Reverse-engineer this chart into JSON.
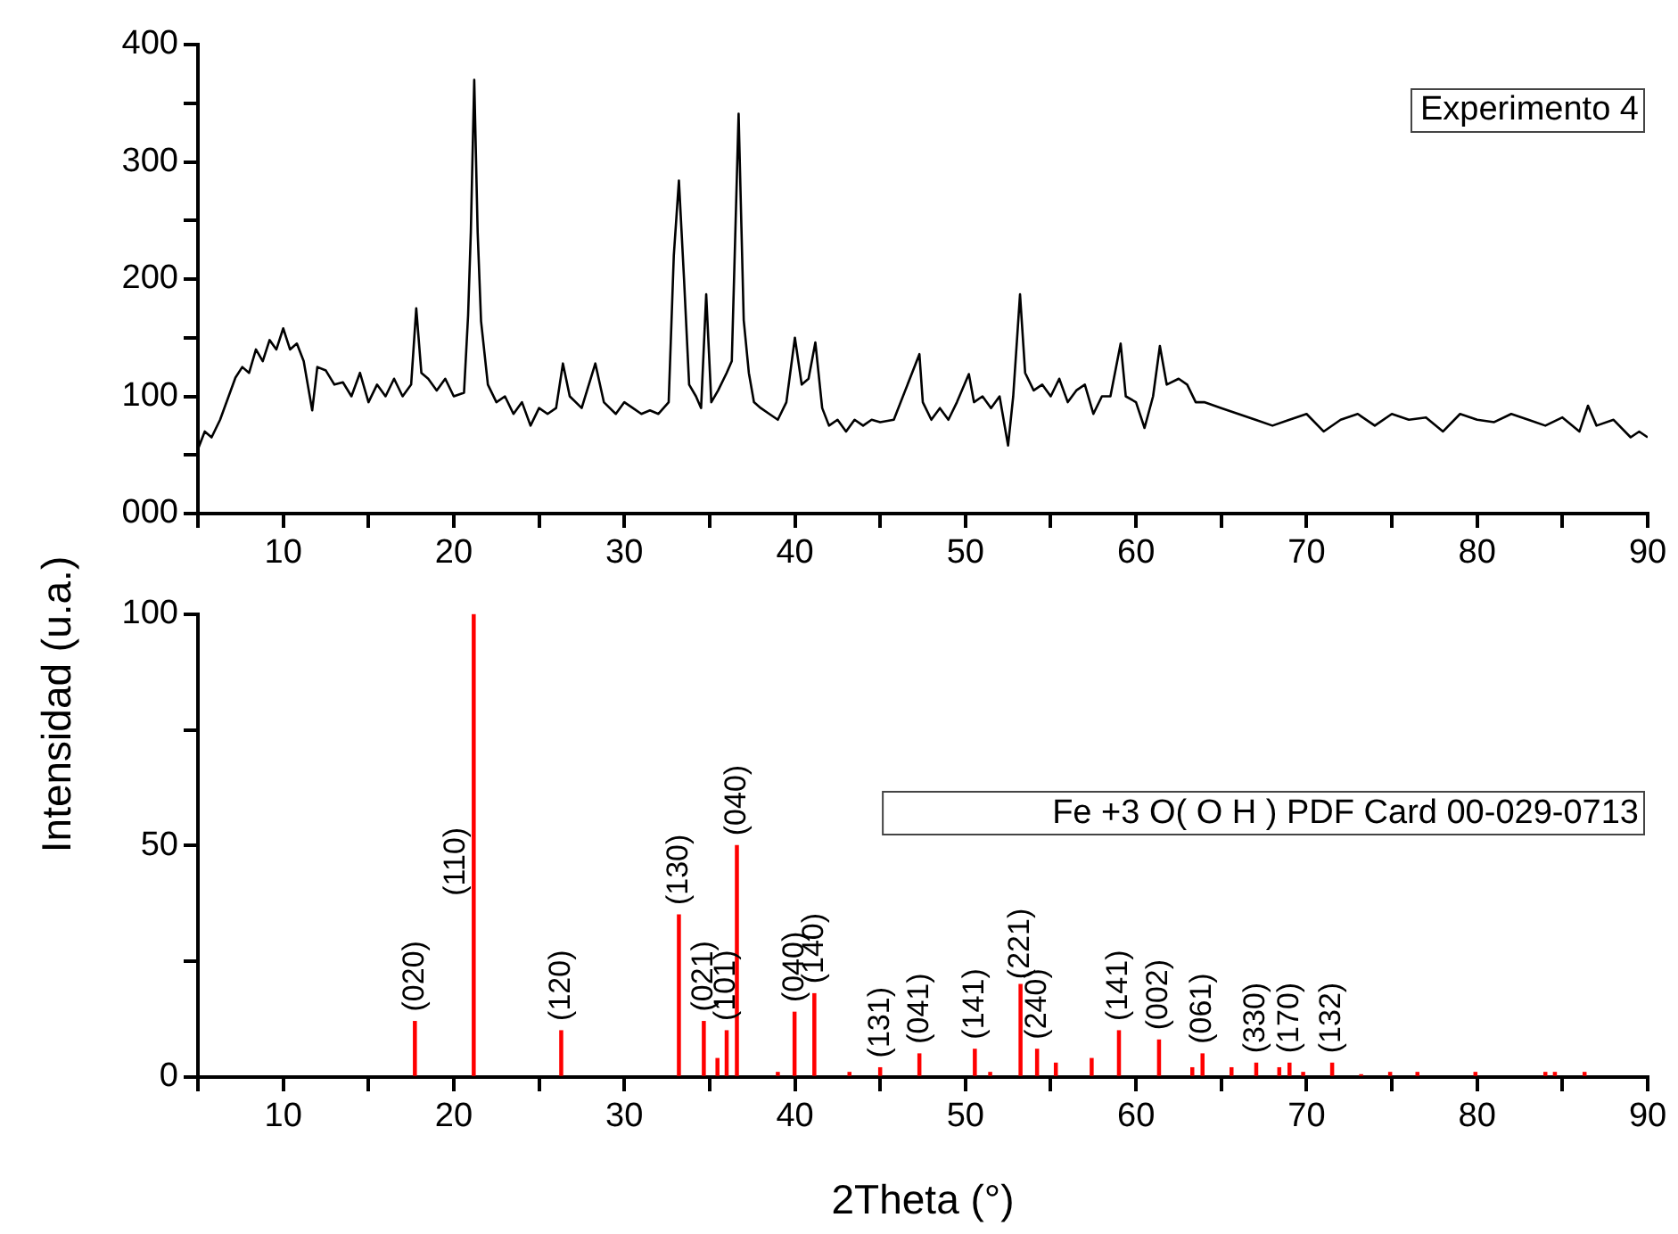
{
  "chart_data": [
    {
      "type": "line",
      "x": [
        5,
        5.4,
        5.8,
        6.3,
        6.8,
        7.2,
        7.6,
        8,
        8.4,
        8.8,
        9.2,
        9.6,
        10,
        10.4,
        10.8,
        11.2,
        11.7,
        12,
        12.5,
        13,
        13.5,
        14,
        14.5,
        15,
        15.5,
        16,
        16.5,
        17,
        17.5,
        17.8,
        18.1,
        18.5,
        19,
        19.5,
        20,
        20.6,
        20.84,
        21,
        21.2,
        21.4,
        21.6,
        22,
        22.5,
        23,
        23.5,
        24,
        24.5,
        25,
        25.5,
        26,
        26.4,
        26.8,
        27.5,
        28.3,
        28.8,
        29.5,
        30,
        30.5,
        31,
        31.5,
        32,
        32.6,
        32.9,
        33.2,
        33.5,
        33.8,
        34.2,
        34.5,
        34.8,
        35.1,
        35.5,
        36,
        36.3,
        36.7,
        37,
        37.3,
        37.6,
        38,
        38.5,
        39,
        39.5,
        40,
        40.4,
        40.8,
        41.2,
        41.6,
        42,
        42.5,
        43,
        43.5,
        44,
        44.5,
        45,
        45.8,
        47.3,
        47.5,
        48,
        48.5,
        49,
        49.5,
        50.2,
        50.5,
        51,
        51.5,
        52,
        52.5,
        52.8,
        53.2,
        53.5,
        54,
        54.5,
        55,
        55.5,
        56,
        56.5,
        57,
        57.5,
        58,
        58.5,
        59.1,
        59.4,
        60,
        60.5,
        61,
        61.4,
        61.8,
        62.5,
        63,
        63.5,
        64,
        65,
        66,
        67,
        68,
        69,
        70,
        71,
        72,
        73,
        74,
        75,
        76,
        77,
        78,
        79,
        80,
        81,
        82,
        83,
        84,
        85,
        86,
        86.5,
        87,
        88,
        89,
        89.5,
        90
      ],
      "series": [
        {
          "name": "Experimento 4",
          "color": "#000000",
          "values": [
            55,
            70,
            65,
            80,
            100,
            116,
            125,
            120,
            140,
            130,
            148,
            140,
            158,
            140,
            145,
            130,
            88,
            125,
            122,
            110,
            112,
            100,
            120,
            95,
            110,
            100,
            115,
            100,
            110,
            175,
            120,
            115,
            105,
            115,
            100,
            103,
            169,
            240,
            370,
            240,
            164,
            110,
            95,
            100,
            85,
            95,
            75,
            90,
            85,
            90,
            128,
            100,
            90,
            128,
            95,
            85,
            95,
            90,
            85,
            88,
            85,
            95,
            220,
            284,
            200,
            110,
            100,
            90,
            187,
            95,
            105,
            120,
            130,
            341,
            165,
            120,
            95,
            90,
            85,
            80,
            95,
            150,
            110,
            115,
            146,
            90,
            75,
            80,
            70,
            80,
            75,
            80,
            78,
            80,
            136,
            95,
            80,
            90,
            80,
            95,
            119,
            95,
            100,
            90,
            100,
            58,
            100,
            187,
            120,
            105,
            110,
            100,
            115,
            95,
            105,
            110,
            85,
            100,
            100,
            145,
            100,
            95,
            73,
            100,
            143,
            110,
            115,
            110,
            95,
            95,
            90,
            85,
            80,
            75,
            80,
            85,
            70,
            80,
            85,
            75,
            85,
            80,
            82,
            70,
            85,
            80,
            78,
            85,
            80,
            75,
            82,
            70,
            92,
            75,
            80,
            65,
            70,
            65
          ]
        }
      ],
      "xlim": [
        5,
        90
      ],
      "xticks": [
        {
          "value": 5,
          "label": null
        },
        10,
        {
          "value": 15,
          "label": null
        },
        20,
        {
          "value": 25,
          "label": null
        },
        30,
        {
          "value": 35,
          "label": null
        },
        40,
        {
          "value": 45,
          "label": null
        },
        50,
        {
          "value": 55,
          "label": null
        },
        60,
        {
          "value": 65,
          "label": null
        },
        70,
        {
          "value": 75,
          "label": null
        },
        80,
        {
          "value": 85,
          "label": null
        },
        90
      ],
      "ylim": [
        0,
        400
      ],
      "yticks": [
        {
          "value": 0,
          "label": "000"
        },
        {
          "value": 50,
          "label": null
        },
        100,
        {
          "value": 150,
          "label": null
        },
        200,
        {
          "value": 250,
          "label": null
        },
        300,
        {
          "value": 350,
          "label": null
        },
        400
      ],
      "marker": "none",
      "legend": "top right"
    },
    {
      "type": "bar",
      "x": [
        17.72,
        21.17,
        26.3,
        33.2,
        34.66,
        35.46,
        36,
        36.6,
        39,
        39.98,
        41.14,
        43.2,
        45,
        47.3,
        50.55,
        51.45,
        53.23,
        54.2,
        55.3,
        57.4,
        59,
        61.35,
        63.3,
        63.9,
        65.6,
        67.05,
        68.4,
        69,
        69.8,
        71.5,
        73.2,
        74.9,
        76.5,
        79.9,
        84,
        84.56,
        86.3
      ],
      "series": [
        {
          "name": "Fe +3 O( O H ) PDF Card 00-029-0713",
          "color": "#ff0000",
          "values": [
            12,
            100,
            10,
            35,
            12,
            4,
            10,
            50,
            1,
            14,
            18,
            1,
            2,
            5,
            6,
            1,
            20,
            6,
            3,
            4,
            10,
            8,
            2,
            5,
            2,
            3,
            2,
            3,
            1,
            3,
            0.5,
            1,
            1,
            1,
            1,
            1,
            1
          ]
        }
      ],
      "xlim": [
        5,
        90
      ],
      "xticks": [
        {
          "value": 5,
          "label": null
        },
        10,
        {
          "value": 15,
          "label": null
        },
        20,
        {
          "value": 25,
          "label": null
        },
        30,
        {
          "value": 35,
          "label": null
        },
        40,
        {
          "value": 45,
          "label": null
        },
        50,
        {
          "value": 55,
          "label": null
        },
        60,
        {
          "value": 65,
          "label": null
        },
        70,
        {
          "value": 75,
          "label": null
        },
        80,
        {
          "value": 85,
          "label": null
        },
        90
      ],
      "ylim": [
        0,
        100
      ],
      "yticks": [
        0,
        {
          "value": 25,
          "label": null
        },
        50,
        {
          "value": 75,
          "label": null
        },
        100
      ],
      "xlabel": "2Theta (°)",
      "ylabel": "Intensidad (u.a.)",
      "legend": "right",
      "annotations": [
        {
          "text": "(020)",
          "x": 17.72,
          "y": 13
        },
        {
          "text": "(110)",
          "x": 21.17,
          "y": 38
        },
        {
          "text": "(120)",
          "x": 26.3,
          "y": 11
        },
        {
          "text": "(130)",
          "x": 33.2,
          "y": 36
        },
        {
          "text": "(021)",
          "x": 34.66,
          "y": 13
        },
        {
          "text": "(101)",
          "x": 36,
          "y": 11
        },
        {
          "text": "(040)",
          "x": 36.6,
          "y": 51
        },
        {
          "text": "(040)",
          "x": 39.98,
          "y": 15
        },
        {
          "text": "(140)",
          "x": 41.14,
          "y": 19
        },
        {
          "text": "(131)",
          "x": 45,
          "y": 3
        },
        {
          "text": "(041)",
          "x": 47.3,
          "y": 6
        },
        {
          "text": "(141)",
          "x": 50.55,
          "y": 7
        },
        {
          "text": "(221)",
          "x": 53.23,
          "y": 20
        },
        {
          "text": "(240)",
          "x": 54.2,
          "y": 7
        },
        {
          "text": "(141)",
          "x": 59,
          "y": 11
        },
        {
          "text": "(002)",
          "x": 61.35,
          "y": 9
        },
        {
          "text": "(061)",
          "x": 63.9,
          "y": 6
        },
        {
          "text": "(330)",
          "x": 67.05,
          "y": 4
        },
        {
          "text": "(170)",
          "x": 69,
          "y": 4
        },
        {
          "text": "(132)",
          "x": 71.5,
          "y": 4
        }
      ]
    }
  ]
}
